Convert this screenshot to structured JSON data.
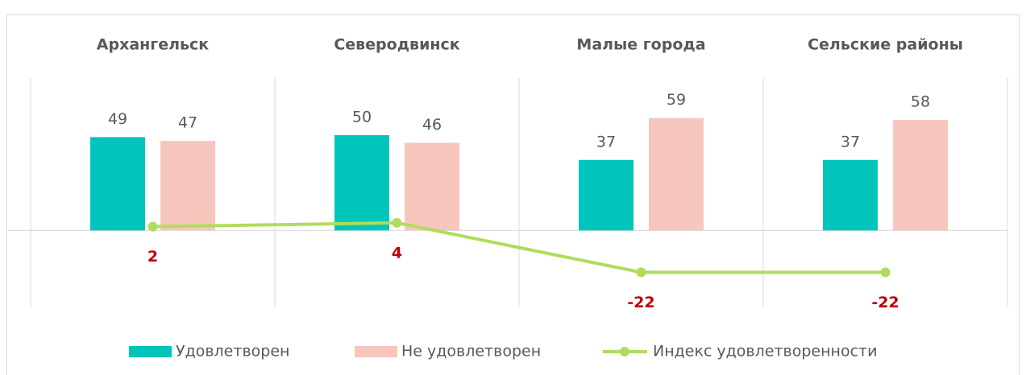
{
  "chart_data": {
    "type": "bar_line",
    "categories": [
      "Архангельск",
      "Северодвинск",
      "Малые города",
      "Сельские районы"
    ],
    "series": [
      {
        "name": "Удовлетворен",
        "type": "bar",
        "color": "#00c5ba",
        "values": [
          49,
          50,
          37,
          37
        ]
      },
      {
        "name": "Не удовлетворен",
        "type": "bar",
        "color": "#f7c6bd",
        "values": [
          47,
          46,
          59,
          58
        ]
      },
      {
        "name": "Индекс удовлетворенности",
        "type": "line",
        "color": "#b0dc5c",
        "label_color": "#c00000",
        "values": [
          2,
          4,
          -22,
          -22
        ]
      }
    ],
    "ylim": [
      -40,
      80
    ]
  }
}
